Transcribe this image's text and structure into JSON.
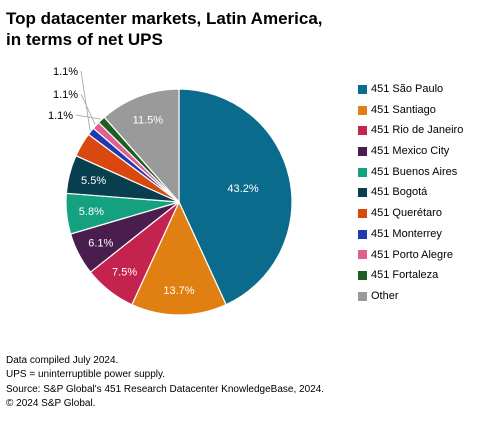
{
  "title": {
    "line1": "Top datacenter markets, Latin America,",
    "line2": "in terms of net UPS"
  },
  "chart_data": {
    "type": "pie",
    "start_angle_deg": 0,
    "direction": "clockwise",
    "legend_position": "right",
    "slices": [
      {
        "label": "451 São Paulo",
        "value": 43.2,
        "display": "43.2%",
        "color": "#0a6b8c",
        "label_color": "#ffffff"
      },
      {
        "label": "451 Santiago",
        "value": 13.7,
        "display": "13.7%",
        "color": "#e07f12",
        "label_color": "#ffffff"
      },
      {
        "label": "451 Rio de Janeiro",
        "value": 7.5,
        "display": "7.5%",
        "color": "#c4234f",
        "label_color": "#ffffff"
      },
      {
        "label": "451 Mexico City",
        "value": 6.1,
        "display": "6.1%",
        "color": "#4a1d4f",
        "label_color": "#ffffff"
      },
      {
        "label": "451 Buenos Aires",
        "value": 5.8,
        "display": "5.8%",
        "color": "#14a17f",
        "label_color": "#ffffff"
      },
      {
        "label": "451 Bogotá",
        "value": 5.5,
        "display": "5.5%",
        "color": "#083f4e",
        "label_color": "#ffffff"
      },
      {
        "label": "451 Querétaro",
        "value": 3.5,
        "display": "",
        "color": "#d9480f",
        "label_color": "#ffffff"
      },
      {
        "label": "451 Monterrey",
        "value": 1.1,
        "display": "1.1%",
        "color": "#1f3ab0",
        "label_color": "#000000"
      },
      {
        "label": "451 Porto Alegre",
        "value": 1.1,
        "display": "1.1%",
        "color": "#e0608e",
        "label_color": "#000000"
      },
      {
        "label": "451 Fortaleza",
        "value": 1.1,
        "display": "1.1%",
        "color": "#1d5e22",
        "label_color": "#000000"
      },
      {
        "label": "Other",
        "value": 11.5,
        "display": "11.5%",
        "color": "#9a9a9a",
        "label_color": "#ffffff"
      }
    ]
  },
  "footnotes": {
    "line1": "Data compiled July 2024.",
    "line2": "UPS = uninterruptible power supply.",
    "line3": "Source: S&P Global's 451 Research Datacenter KnowledgeBase, 2024.",
    "line4": "© 2024 S&P Global."
  }
}
